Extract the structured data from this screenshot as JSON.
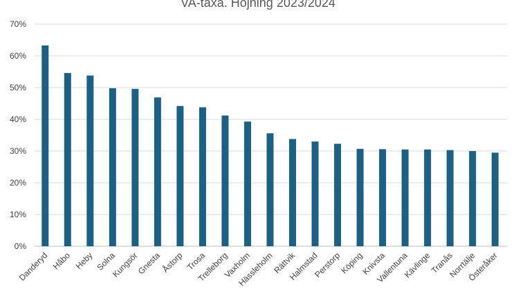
{
  "chart_data": {
    "type": "bar",
    "title": "VA-taxa. Höjning 2023/2024",
    "xlabel": "",
    "ylabel": "",
    "categories": [
      "Danderyd",
      "Håbo",
      "Heby",
      "Solna",
      "Kungsör",
      "Gnesta",
      "Åstorp",
      "Trosa",
      "Trelleborg",
      "Vaxholm",
      "Hässleholm",
      "Rättvik",
      "Halmstad",
      "Perstorp",
      "Köping",
      "Knivsta",
      "Vallentuna",
      "Kävlinge",
      "Tranås",
      "Norrtälje",
      "Österåker"
    ],
    "values": [
      63.3,
      54.6,
      53.8,
      49.8,
      49.6,
      46.9,
      44.2,
      43.8,
      41.2,
      39.3,
      35.6,
      33.8,
      33.0,
      32.3,
      30.7,
      30.6,
      30.5,
      30.5,
      30.3,
      30.0,
      29.5
    ],
    "ylim": [
      0,
      70
    ],
    "yticks": [
      "0%",
      "10%",
      "20%",
      "30%",
      "40%",
      "50%",
      "60%",
      "70%"
    ],
    "grid": true,
    "legend": "none",
    "bar_color": "#1b6185"
  }
}
